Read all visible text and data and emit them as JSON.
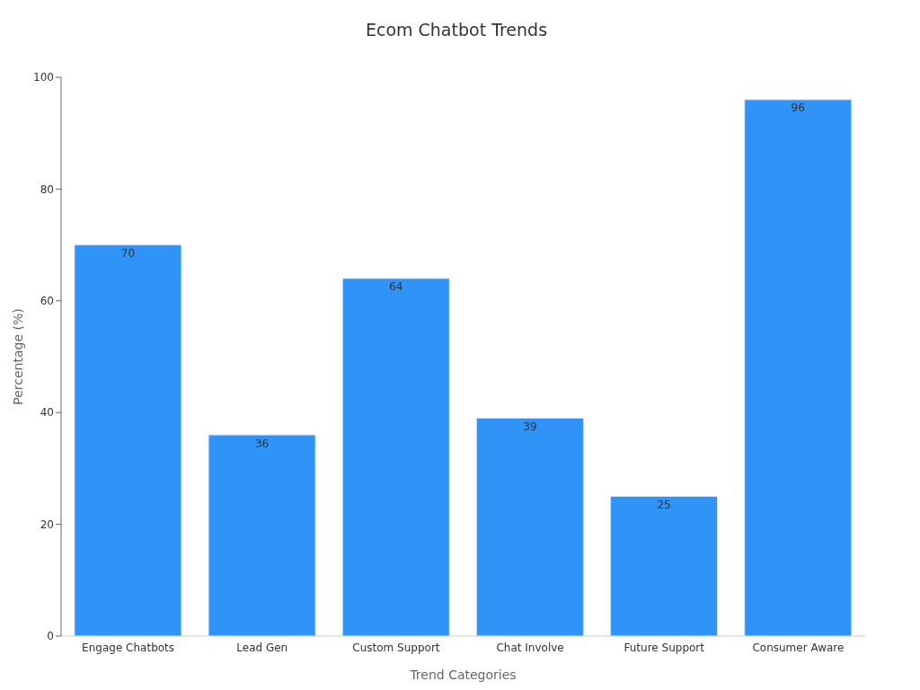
{
  "chart_data": {
    "type": "bar",
    "title": "Ecom Chatbot Trends",
    "xlabel": "Trend Categories",
    "ylabel": "Percentage (%)",
    "categories": [
      "Engage Chatbots",
      "Lead Gen",
      "Custom Support",
      "Chat Involve",
      "Future Support",
      "Consumer Aware"
    ],
    "values": [
      70,
      36,
      64,
      39,
      25,
      96
    ],
    "color": "#3093f7",
    "ylim": [
      0,
      100
    ],
    "yticks": [
      0,
      20,
      40,
      60,
      80,
      100
    ],
    "data_labels": true
  }
}
